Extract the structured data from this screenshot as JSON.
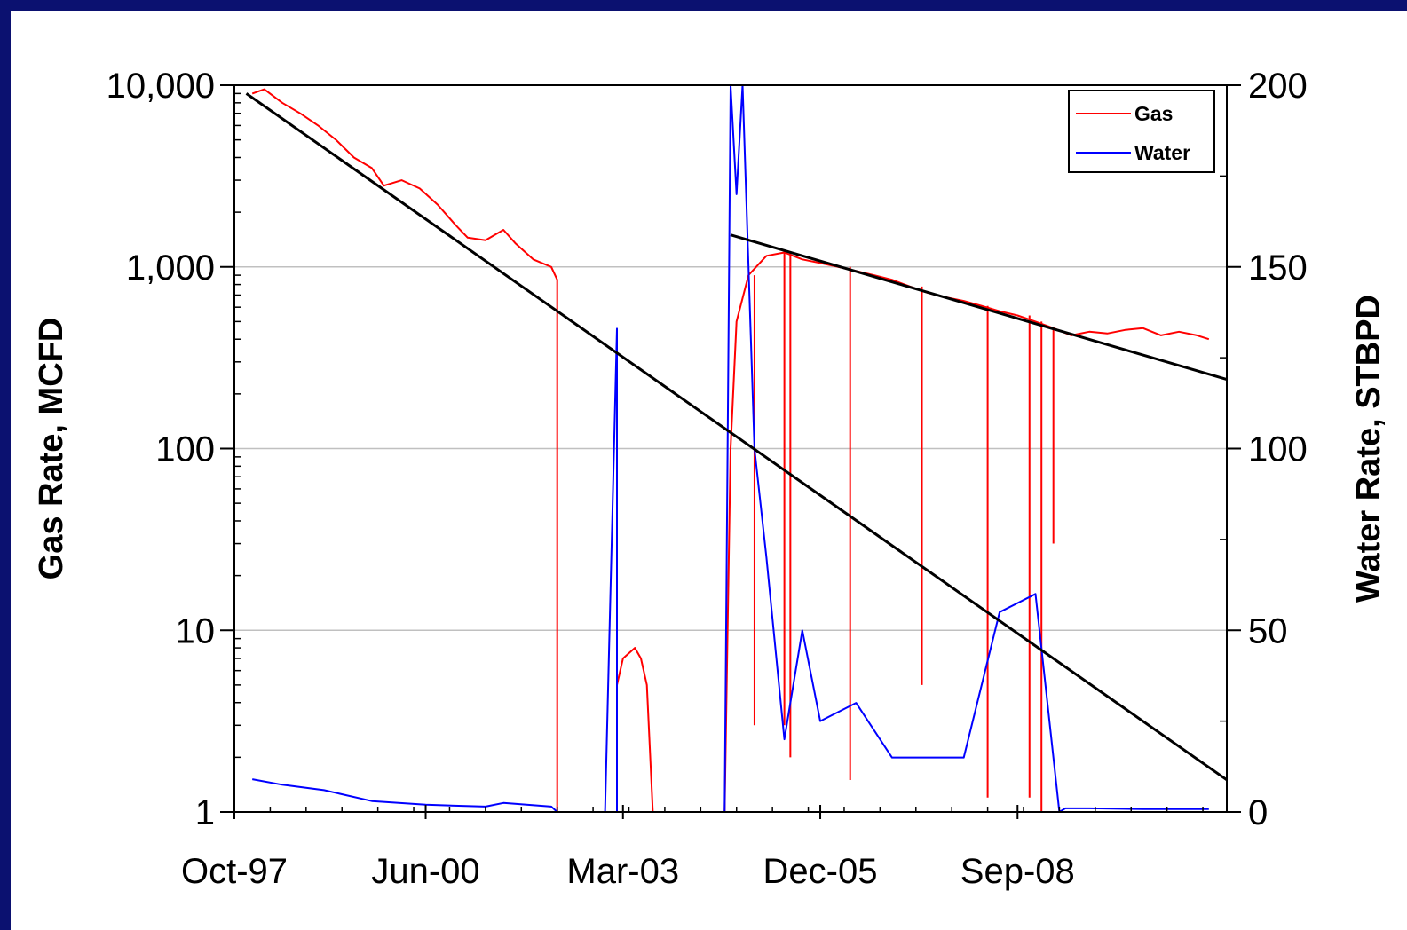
{
  "chart_data": {
    "type": "line",
    "y_left": {
      "label": "Gas Rate, MCFD",
      "scale": "log",
      "range": [
        1,
        10000
      ],
      "ticks": [
        1,
        10,
        100,
        1000,
        10000
      ],
      "tick_labels": [
        "1",
        "10",
        "100",
        "1,000",
        "10,000"
      ]
    },
    "y_right": {
      "label": "Water Rate, STBPD",
      "scale": "linear",
      "range": [
        0,
        200
      ],
      "ticks": [
        0,
        50,
        100,
        150,
        200
      ],
      "tick_labels": [
        "0",
        "50",
        "100",
        "150",
        "200"
      ]
    },
    "x_axis": {
      "type": "date",
      "range": [
        "1997-10",
        "2011-08"
      ],
      "ticks": [
        "1997-10",
        "2000-06",
        "2003-03",
        "2005-12",
        "2008-09"
      ],
      "tick_labels": [
        "Oct-97",
        "Jun-00",
        "Mar-03",
        "Dec-05",
        "Sep-08"
      ]
    },
    "grid": "horizontal",
    "legend": {
      "position": "top-right",
      "entries": [
        "Gas",
        "Water"
      ]
    },
    "colors": {
      "gas": "#ff0000",
      "water": "#0000ff",
      "trend": "#000000"
    },
    "series": [
      {
        "name": "Gas",
        "axis": "left",
        "color": "#ff0000",
        "points": [
          [
            "1998-01",
            9000
          ],
          [
            "1998-03",
            9500
          ],
          [
            "1998-06",
            8000
          ],
          [
            "1998-09",
            7000
          ],
          [
            "1998-12",
            6000
          ],
          [
            "1999-03",
            5000
          ],
          [
            "1999-06",
            4000
          ],
          [
            "1999-09",
            3500
          ],
          [
            "1999-11",
            2800
          ],
          [
            "2000-02",
            3000
          ],
          [
            "2000-05",
            2700
          ],
          [
            "2000-08",
            2200
          ],
          [
            "2000-11",
            1700
          ],
          [
            "2001-01",
            1450
          ],
          [
            "2001-04",
            1400
          ],
          [
            "2001-07",
            1600
          ],
          [
            "2001-09",
            1350
          ],
          [
            "2001-12",
            1100
          ],
          [
            "2002-03",
            1000
          ],
          [
            "2002-04",
            850
          ],
          [
            "2002-04",
            1
          ],
          [
            "2003-02",
            1
          ],
          [
            "2003-02",
            5
          ],
          [
            "2003-03",
            7
          ],
          [
            "2003-05",
            8
          ],
          [
            "2003-06",
            7
          ],
          [
            "2003-07",
            5
          ],
          [
            "2003-08",
            1
          ],
          [
            "2004-08",
            1
          ],
          [
            "2004-09",
            100
          ],
          [
            "2004-10",
            500
          ],
          [
            "2004-12",
            900
          ],
          [
            "2005-03",
            1150
          ],
          [
            "2005-06",
            1200
          ],
          [
            "2005-09",
            1100
          ],
          [
            "2005-12",
            1050
          ],
          [
            "2006-03",
            1000
          ],
          [
            "2006-06",
            950
          ],
          [
            "2006-09",
            900
          ],
          [
            "2006-12",
            850
          ],
          [
            "2007-03",
            780
          ],
          [
            "2007-06",
            720
          ],
          [
            "2007-09",
            680
          ],
          [
            "2007-12",
            650
          ],
          [
            "2008-03",
            610
          ],
          [
            "2008-06",
            570
          ],
          [
            "2008-09",
            540
          ],
          [
            "2008-12",
            500
          ],
          [
            "2009-03",
            460
          ],
          [
            "2009-06",
            420
          ],
          [
            "2009-09",
            440
          ],
          [
            "2009-12",
            430
          ],
          [
            "2010-03",
            450
          ],
          [
            "2010-06",
            460
          ],
          [
            "2010-09",
            420
          ],
          [
            "2010-12",
            440
          ],
          [
            "2011-03",
            420
          ],
          [
            "2011-05",
            400
          ]
        ],
        "dips": [
          [
            "2005-01",
            3
          ],
          [
            "2005-06",
            3
          ],
          [
            "2005-07",
            2
          ],
          [
            "2006-05",
            1.5
          ],
          [
            "2007-05",
            5
          ],
          [
            "2008-04",
            1.2
          ],
          [
            "2008-11",
            1.2
          ],
          [
            "2009-01",
            1
          ],
          [
            "2009-03",
            30
          ]
        ]
      },
      {
        "name": "Water",
        "axis": "right",
        "color": "#0000ff",
        "points": [
          [
            "1998-01",
            9
          ],
          [
            "1998-06",
            7.5
          ],
          [
            "1999-01",
            6
          ],
          [
            "1999-09",
            3
          ],
          [
            "2000-06",
            2
          ],
          [
            "2001-04",
            1.5
          ],
          [
            "2001-07",
            2.5
          ],
          [
            "2002-03",
            1.5
          ],
          [
            "2002-04",
            0
          ],
          [
            "2002-12",
            0
          ],
          [
            "2003-02",
            133
          ],
          [
            "2003-02",
            0
          ],
          [
            "2004-08",
            0
          ],
          [
            "2004-09",
            200
          ],
          [
            "2004-10",
            170
          ],
          [
            "2004-11",
            200
          ],
          [
            "2005-01",
            100
          ],
          [
            "2005-03",
            70
          ],
          [
            "2005-06",
            20
          ],
          [
            "2005-09",
            50
          ],
          [
            "2005-12",
            25
          ],
          [
            "2006-06",
            30
          ],
          [
            "2006-12",
            15
          ],
          [
            "2007-06",
            15
          ],
          [
            "2007-12",
            15
          ],
          [
            "2008-06",
            55
          ],
          [
            "2008-12",
            60
          ],
          [
            "2009-04",
            0
          ],
          [
            "2009-05",
            1
          ],
          [
            "2009-09",
            1
          ],
          [
            "2010-06",
            0.8
          ],
          [
            "2011-05",
            0.8
          ]
        ]
      },
      {
        "name": "",
        "axis": "left",
        "color": "#000000",
        "points": [
          [
            "1997-12",
            9000
          ],
          [
            "2011-10",
            1.35
          ]
        ]
      },
      {
        "name": "",
        "axis": "left",
        "color": "#000000",
        "points": [
          [
            "2004-09",
            1500
          ],
          [
            "2011-12",
            220
          ]
        ]
      }
    ]
  }
}
